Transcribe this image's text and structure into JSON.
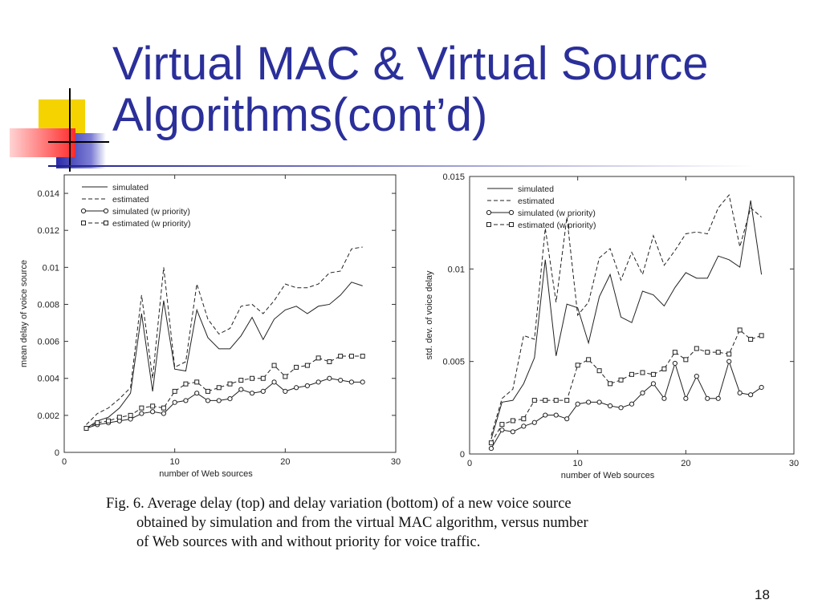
{
  "slide": {
    "title_lines": [
      "Virtual MAC & Virtual Source",
      "Algorithms(cont’d)"
    ],
    "caption_lines": [
      "Fig. 6.   Average delay (top) and delay variation (bottom) of a new voice source",
      "obtained by simulation and from the virtual MAC algorithm, versus number",
      "of Web sources with and without priority for voice traffic."
    ],
    "page_number": "18",
    "colors": {
      "title": "#2b2f9a",
      "accent_yellow": "#f5d300",
      "accent_blue": "#2a2aa8",
      "accent_red": "#ff2a2a"
    }
  },
  "chart_data": [
    {
      "type": "line",
      "xlabel": "number of Web sources",
      "ylabel": "mean delay of voice source",
      "xlim": [
        0,
        30
      ],
      "ylim": [
        0,
        0.015
      ],
      "xticks": [
        0,
        10,
        20,
        30
      ],
      "xtick_labels": [
        "0",
        "10",
        "20",
        "30"
      ],
      "yticks": [
        0,
        0.002,
        0.004,
        0.006,
        0.008,
        0.01,
        0.012,
        0.014
      ],
      "ytick_labels": [
        "0",
        "0.002",
        "0.004",
        "0.006",
        "0.008",
        "0.01",
        "0.012",
        "0.014"
      ],
      "legend_position": "top-left",
      "x": [
        2,
        3,
        4,
        5,
        6,
        7,
        8,
        9,
        10,
        11,
        12,
        13,
        14,
        15,
        16,
        17,
        18,
        19,
        20,
        21,
        22,
        23,
        24,
        25,
        26,
        27
      ],
      "series": [
        {
          "name": "simulated",
          "style": "solid",
          "marker": "none",
          "values": [
            0.0013,
            0.0017,
            0.0019,
            0.0024,
            0.0032,
            0.0075,
            0.0033,
            0.0082,
            0.0045,
            0.0044,
            0.0077,
            0.0062,
            0.0056,
            0.0056,
            0.0063,
            0.0073,
            0.0061,
            0.0072,
            0.0077,
            0.0079,
            0.0075,
            0.0079,
            0.008,
            0.0085,
            0.0092,
            0.009
          ]
        },
        {
          "name": "estimated",
          "style": "dashed",
          "marker": "none",
          "values": [
            0.0015,
            0.0021,
            0.0024,
            0.0029,
            0.0035,
            0.0085,
            0.004,
            0.01,
            0.0046,
            0.0049,
            0.0091,
            0.0072,
            0.0064,
            0.0067,
            0.0079,
            0.008,
            0.0075,
            0.0082,
            0.0091,
            0.0089,
            0.0089,
            0.0091,
            0.0097,
            0.0098,
            0.011,
            0.0111
          ]
        },
        {
          "name": "simulated (w priority)",
          "style": "solid",
          "marker": "circle",
          "values": [
            0.0013,
            0.0015,
            0.0016,
            0.0017,
            0.0018,
            0.0021,
            0.0022,
            0.0021,
            0.0027,
            0.0028,
            0.0032,
            0.0028,
            0.0028,
            0.0029,
            0.0034,
            0.0032,
            0.0033,
            0.0038,
            0.0033,
            0.0035,
            0.0036,
            0.0038,
            0.004,
            0.0039,
            0.0038,
            0.0038
          ]
        },
        {
          "name": "estimated (w priority)",
          "style": "dashed",
          "marker": "square",
          "values": [
            0.0013,
            0.0016,
            0.0017,
            0.0019,
            0.002,
            0.0024,
            0.0025,
            0.0024,
            0.0033,
            0.0037,
            0.0038,
            0.0033,
            0.0035,
            0.0037,
            0.0039,
            0.004,
            0.004,
            0.0047,
            0.0041,
            0.0046,
            0.0047,
            0.0051,
            0.0049,
            0.0052,
            0.0052,
            0.0052
          ]
        }
      ]
    },
    {
      "type": "line",
      "xlabel": "number of Web sources",
      "ylabel": "std. dev. of voice delay",
      "xlim": [
        0,
        30
      ],
      "ylim": [
        0,
        0.015
      ],
      "xticks": [
        0,
        10,
        20,
        30
      ],
      "xtick_labels": [
        "0",
        "10",
        "20",
        "30"
      ],
      "yticks": [
        0,
        0.005,
        0.01,
        0.015
      ],
      "ytick_labels": [
        "0",
        "0.005",
        "0.01",
        "0.015"
      ],
      "legend_position": "top-left",
      "x": [
        2,
        3,
        4,
        5,
        6,
        7,
        8,
        9,
        10,
        11,
        12,
        13,
        14,
        15,
        16,
        17,
        18,
        19,
        20,
        21,
        22,
        23,
        24,
        25,
        26,
        27
      ],
      "series": [
        {
          "name": "simulated",
          "style": "solid",
          "marker": "none",
          "values": [
            0.0008,
            0.0028,
            0.0029,
            0.0038,
            0.0052,
            0.0105,
            0.0053,
            0.0081,
            0.0079,
            0.006,
            0.0085,
            0.0097,
            0.0074,
            0.0071,
            0.0088,
            0.0086,
            0.008,
            0.009,
            0.0098,
            0.0095,
            0.0095,
            0.0107,
            0.0105,
            0.0101,
            0.0137,
            0.0097
          ]
        },
        {
          "name": "estimated",
          "style": "dashed",
          "marker": "none",
          "values": [
            0.001,
            0.003,
            0.0035,
            0.0064,
            0.0062,
            0.0122,
            0.0082,
            0.0128,
            0.0075,
            0.0082,
            0.0106,
            0.0111,
            0.0094,
            0.0109,
            0.0097,
            0.0118,
            0.0102,
            0.011,
            0.0119,
            0.012,
            0.0119,
            0.0133,
            0.014,
            0.0112,
            0.0133,
            0.0128
          ]
        },
        {
          "name": "simulated (w priority)",
          "style": "solid",
          "marker": "circle",
          "values": [
            0.0003,
            0.0013,
            0.0012,
            0.0015,
            0.0017,
            0.0021,
            0.0021,
            0.0019,
            0.0027,
            0.0028,
            0.0028,
            0.0026,
            0.0025,
            0.0027,
            0.0033,
            0.0038,
            0.003,
            0.0049,
            0.003,
            0.0042,
            0.003,
            0.003,
            0.005,
            0.0033,
            0.0032,
            0.0036
          ]
        },
        {
          "name": "estimated (w priority)",
          "style": "dashed",
          "marker": "square",
          "values": [
            0.0006,
            0.0016,
            0.0018,
            0.0019,
            0.0029,
            0.0029,
            0.0029,
            0.0029,
            0.0048,
            0.0051,
            0.0045,
            0.0038,
            0.004,
            0.0043,
            0.0044,
            0.0043,
            0.0046,
            0.0055,
            0.0051,
            0.0057,
            0.0055,
            0.0055,
            0.0054,
            0.0067,
            0.0062,
            0.0064
          ]
        }
      ]
    }
  ]
}
